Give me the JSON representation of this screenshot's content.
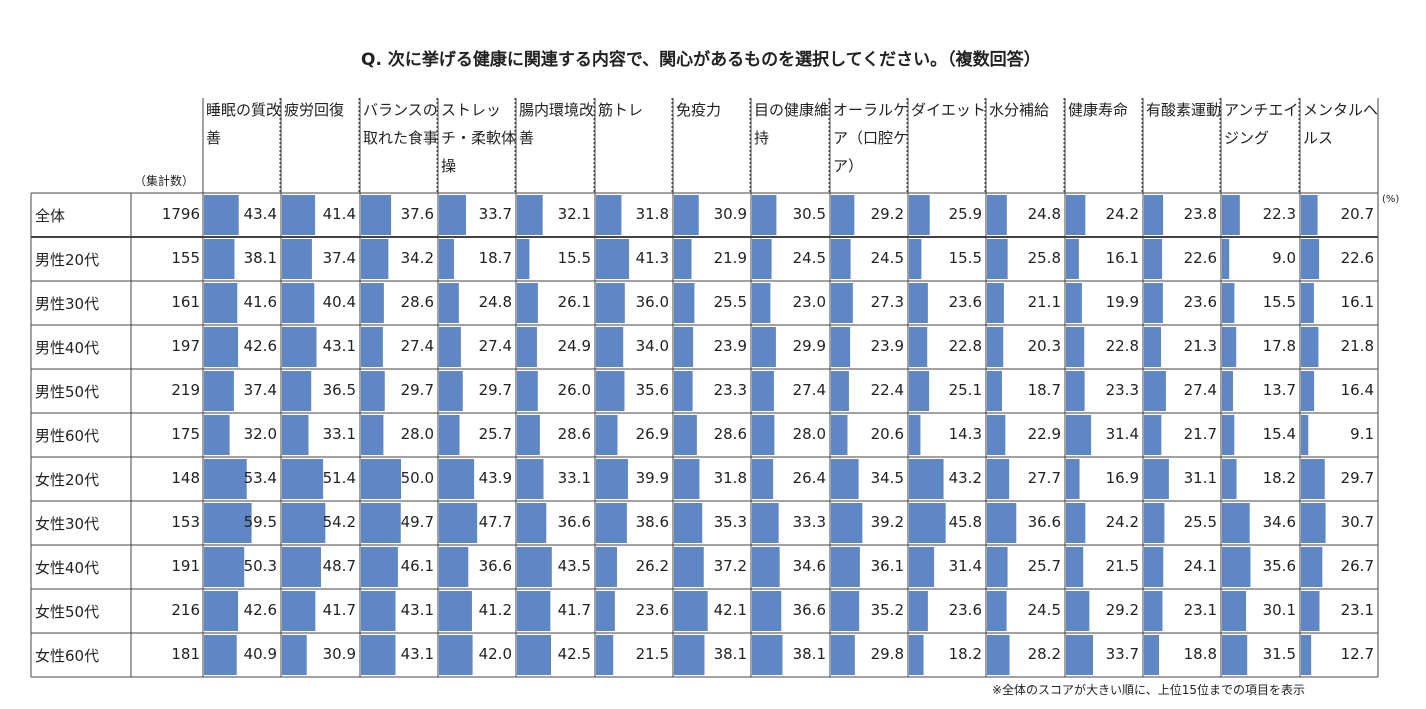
{
  "title": "Q. 次に挙げる健康に関連する内容で、関心があるものを選択してください。（複数回答）",
  "count_header": "（集計数）",
  "unit": "(%)",
  "note": "※全体のスコアが大きい順に、上位15位までの項目を表示",
  "colors": {
    "bar": "#5f87c6",
    "grid": "#444444"
  },
  "chart_data": {
    "type": "table",
    "categories": [
      "睡眠の質改善",
      "疲労回復",
      "バランスの取れた食事",
      "ストレッチ・柔軟体操",
      "腸内環境改善",
      "筋トレ",
      "免疫力",
      "目の健康維持",
      "オーラルケア（口腔ケア）",
      "ダイエット",
      "水分補給",
      "健康寿命",
      "有酸素運動",
      "アンチエイジング",
      "メンタルヘルス"
    ],
    "rows": [
      {
        "label": "全体",
        "n": "1796",
        "values": [
          43.4,
          41.4,
          37.6,
          33.7,
          32.1,
          31.8,
          30.9,
          30.5,
          29.2,
          25.9,
          24.8,
          24.2,
          23.8,
          22.3,
          20.7
        ]
      },
      {
        "label": "男性20代",
        "n": "155",
        "values": [
          38.1,
          37.4,
          34.2,
          18.7,
          15.5,
          41.3,
          21.9,
          24.5,
          24.5,
          15.5,
          25.8,
          16.1,
          22.6,
          9.0,
          22.6
        ]
      },
      {
        "label": "男性30代",
        "n": "161",
        "values": [
          41.6,
          40.4,
          28.6,
          24.8,
          26.1,
          36.0,
          25.5,
          23.0,
          27.3,
          23.6,
          21.1,
          19.9,
          23.6,
          15.5,
          16.1
        ]
      },
      {
        "label": "男性40代",
        "n": "197",
        "values": [
          42.6,
          43.1,
          27.4,
          27.4,
          24.9,
          34.0,
          23.9,
          29.9,
          23.9,
          22.8,
          20.3,
          22.8,
          21.3,
          17.8,
          21.8
        ]
      },
      {
        "label": "男性50代",
        "n": "219",
        "values": [
          37.4,
          36.5,
          29.7,
          29.7,
          26.0,
          35.6,
          23.3,
          27.4,
          22.4,
          25.1,
          18.7,
          23.3,
          27.4,
          13.7,
          16.4
        ]
      },
      {
        "label": "男性60代",
        "n": "175",
        "values": [
          32.0,
          33.1,
          28.0,
          25.7,
          28.6,
          26.9,
          28.6,
          28.0,
          20.6,
          14.3,
          22.9,
          31.4,
          21.7,
          15.4,
          9.1
        ]
      },
      {
        "label": "女性20代",
        "n": "148",
        "values": [
          53.4,
          51.4,
          50.0,
          43.9,
          33.1,
          39.9,
          31.8,
          26.4,
          34.5,
          43.2,
          27.7,
          16.9,
          31.1,
          18.2,
          29.7
        ]
      },
      {
        "label": "女性30代",
        "n": "153",
        "values": [
          59.5,
          54.2,
          49.7,
          47.7,
          36.6,
          38.6,
          35.3,
          33.3,
          39.2,
          45.8,
          36.6,
          24.2,
          25.5,
          34.6,
          30.7
        ]
      },
      {
        "label": "女性40代",
        "n": "191",
        "values": [
          50.3,
          48.7,
          46.1,
          36.6,
          43.5,
          26.2,
          37.2,
          34.6,
          36.1,
          31.4,
          25.7,
          21.5,
          24.1,
          35.6,
          26.7
        ]
      },
      {
        "label": "女性50代",
        "n": "216",
        "values": [
          42.6,
          41.7,
          43.1,
          41.2,
          41.7,
          23.6,
          42.1,
          36.6,
          35.2,
          23.6,
          24.5,
          29.2,
          23.1,
          30.1,
          23.1
        ]
      },
      {
        "label": "女性60代",
        "n": "181",
        "values": [
          40.9,
          30.9,
          43.1,
          42.0,
          42.5,
          21.5,
          38.1,
          38.1,
          29.8,
          18.2,
          28.2,
          33.7,
          18.8,
          31.5,
          12.7
        ]
      }
    ],
    "value_format": "0.0",
    "bar_scale_max": 100
  }
}
